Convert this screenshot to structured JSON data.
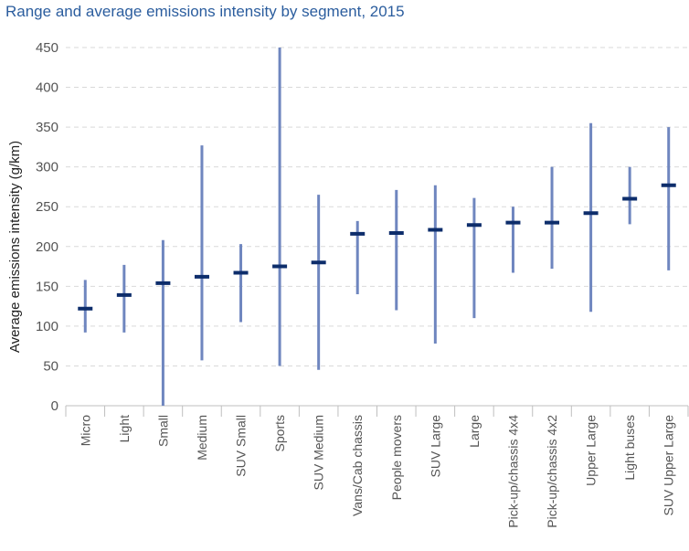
{
  "chart_data": {
    "type": "range",
    "title": "Range and average emissions intensity by segment, 2015",
    "ylabel": "Average emissions intensity (g/km)",
    "xlabel": "",
    "ylim": [
      0,
      450
    ],
    "yticks": [
      0,
      50,
      100,
      150,
      200,
      250,
      300,
      350,
      400,
      450
    ],
    "grid": true,
    "categories": [
      "Micro",
      "Light",
      "Small",
      "Medium",
      "SUV Small",
      "Sports",
      "SUV Medium",
      "Vans/Cab chassis",
      "People movers",
      "SUV Large",
      "Large",
      "Pick-up/chassis 4x4",
      "Pick-up/chassis 4x2",
      "Upper Large",
      "Light buses",
      "SUV Upper Large"
    ],
    "min": [
      92,
      92,
      0,
      57,
      105,
      50,
      45,
      140,
      120,
      78,
      110,
      167,
      172,
      118,
      228,
      170
    ],
    "max": [
      158,
      177,
      208,
      327,
      203,
      450,
      265,
      232,
      271,
      277,
      261,
      250,
      300,
      355,
      300,
      350
    ],
    "average": [
      122,
      139,
      154,
      162,
      167,
      175,
      180,
      216,
      217,
      221,
      227,
      230,
      230,
      242,
      260,
      277
    ],
    "colors": {
      "range": "#6f86bf",
      "average": "#0d2d6b",
      "title": "#2b5d9e"
    }
  }
}
